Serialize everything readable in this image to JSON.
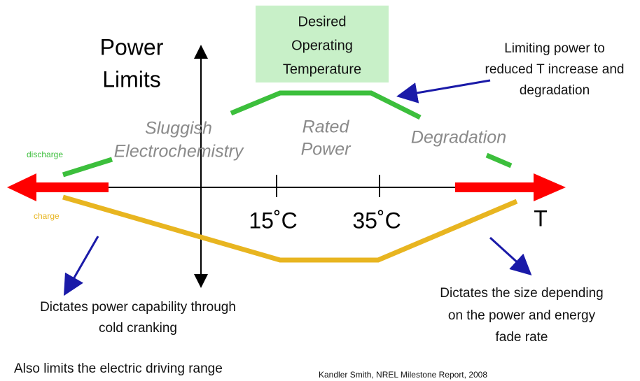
{
  "title": [
    "Power",
    "Limits"
  ],
  "desired_box": [
    "Desired",
    "Operating",
    "Temperature"
  ],
  "limiting_note": [
    "Limiting power to",
    "reduced T increase and",
    "degradation"
  ],
  "regions": {
    "sluggish": [
      "Sluggish",
      "Electrochemistry"
    ],
    "rated": [
      "Rated",
      "Power"
    ],
    "degradation": "Degradation"
  },
  "legend": {
    "discharge": "discharge",
    "charge": "charge"
  },
  "axis_labels": {
    "t15": "15˚C",
    "t35": "35˚C",
    "t": "T"
  },
  "cold_note": [
    "Dictates power capability through",
    "cold cranking"
  ],
  "range_note": "Also limits the electric driving range",
  "size_note": [
    "Dictates the size depending",
    "on the power and energy",
    "fade rate"
  ],
  "citation": "Kandler  Smith, NREL Milestone Report, 2008"
}
